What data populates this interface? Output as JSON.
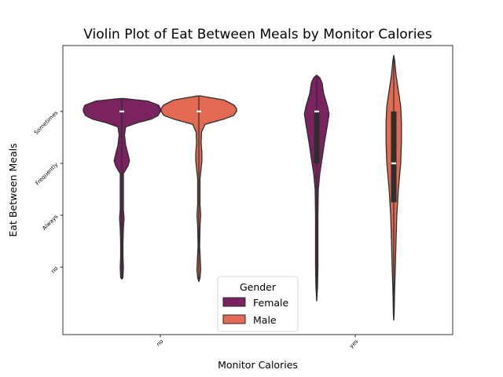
{
  "chart_data": {
    "type": "violin",
    "title": "Violin Plot of Eat Between Meals by Monitor Calories",
    "xlabel": "Monitor Calories",
    "ylabel": "Eat Between Meals",
    "x_categories": [
      "no",
      "yes"
    ],
    "y_categories": [
      "Sometimes",
      "Frequently",
      "Always",
      "no"
    ],
    "y_codes": {
      "Sometimes": 0,
      "Frequently": 1,
      "Always": 2,
      "no": 3
    },
    "ylim": [
      4.3,
      -1.27
    ],
    "grid": false,
    "legend": {
      "title": "Gender",
      "position": "lower-center",
      "entries": [
        {
          "name": "Female",
          "color": "#7b2260"
        },
        {
          "name": "Male",
          "color": "#e26952"
        }
      ]
    },
    "series": [
      {
        "name": "Female",
        "color": "#7b2260",
        "violins": [
          {
            "x": "no",
            "median": 0,
            "q1": 0,
            "q3": 0,
            "density": [
              [
                -0.25,
                0.02
              ],
              [
                -0.2,
                0.34
              ],
              [
                -0.12,
                0.48
              ],
              [
                -0.05,
                0.5
              ],
              [
                0,
                0.5
              ],
              [
                0.08,
                0.47
              ],
              [
                0.15,
                0.38
              ],
              [
                0.22,
                0.2
              ],
              [
                0.3,
                0.05
              ],
              [
                0.45,
                0.035
              ],
              [
                0.65,
                0.05
              ],
              [
                0.82,
                0.08
              ],
              [
                0.95,
                0.1
              ],
              [
                1.05,
                0.08
              ],
              [
                1.2,
                0.02
              ],
              [
                1.4,
                0.02
              ],
              [
                1.7,
                0.02
              ],
              [
                1.9,
                0.02
              ],
              [
                2.05,
                0.03
              ],
              [
                2.25,
                0.02
              ],
              [
                2.5,
                0.015
              ],
              [
                2.8,
                0.015
              ],
              [
                3.0,
                0.02
              ],
              [
                3.2,
                0.015
              ],
              [
                3.23,
                0
              ]
            ]
          },
          {
            "x": "yes",
            "median": 0,
            "q1": 0,
            "q3": 1,
            "density": [
              [
                -0.7,
                0
              ],
              [
                -0.65,
                0.04
              ],
              [
                -0.55,
                0.07
              ],
              [
                -0.35,
                0.09
              ],
              [
                -0.1,
                0.14
              ],
              [
                0.05,
                0.16
              ],
              [
                0.25,
                0.14
              ],
              [
                0.6,
                0.1
              ],
              [
                0.9,
                0.07
              ],
              [
                1.2,
                0.04
              ],
              [
                1.5,
                0.02
              ],
              [
                2.0,
                0.015
              ],
              [
                2.5,
                0.015
              ],
              [
                3.0,
                0.015
              ],
              [
                3.4,
                0.01
              ],
              [
                3.65,
                0
              ]
            ]
          }
        ]
      },
      {
        "name": "Male",
        "color": "#e26952",
        "violins": [
          {
            "x": "no",
            "median": 0,
            "q1": 0,
            "q3": 0,
            "density": [
              [
                -0.3,
                0.02
              ],
              [
                -0.22,
                0.33
              ],
              [
                -0.12,
                0.46
              ],
              [
                -0.05,
                0.49
              ],
              [
                0,
                0.49
              ],
              [
                0.08,
                0.45
              ],
              [
                0.15,
                0.32
              ],
              [
                0.25,
                0.08
              ],
              [
                0.4,
                0.035
              ],
              [
                0.6,
                0.03
              ],
              [
                0.8,
                0.04
              ],
              [
                0.95,
                0.04
              ],
              [
                1.1,
                0.03
              ],
              [
                1.3,
                0.015
              ],
              [
                1.6,
                0.015
              ],
              [
                1.8,
                0.015
              ],
              [
                2.0,
                0.025
              ],
              [
                2.2,
                0.015
              ],
              [
                2.6,
                0.01
              ],
              [
                2.9,
                0.02
              ],
              [
                3.05,
                0.025
              ],
              [
                3.2,
                0.015
              ],
              [
                3.28,
                0
              ]
            ]
          },
          {
            "x": "yes",
            "median": 1,
            "q1": 0,
            "q3": 1.75,
            "density": [
              [
                -1.08,
                0
              ],
              [
                -1.0,
                0.01
              ],
              [
                -0.7,
                0.03
              ],
              [
                -0.4,
                0.06
              ],
              [
                -0.1,
                0.09
              ],
              [
                0.2,
                0.1
              ],
              [
                0.6,
                0.1
              ],
              [
                1.0,
                0.09
              ],
              [
                1.5,
                0.06
              ],
              [
                2.0,
                0.04
              ],
              [
                2.5,
                0.03
              ],
              [
                3.0,
                0.02
              ],
              [
                3.5,
                0.01
              ],
              [
                3.9,
                0.005
              ],
              [
                4.02,
                0
              ]
            ]
          }
        ]
      }
    ]
  }
}
